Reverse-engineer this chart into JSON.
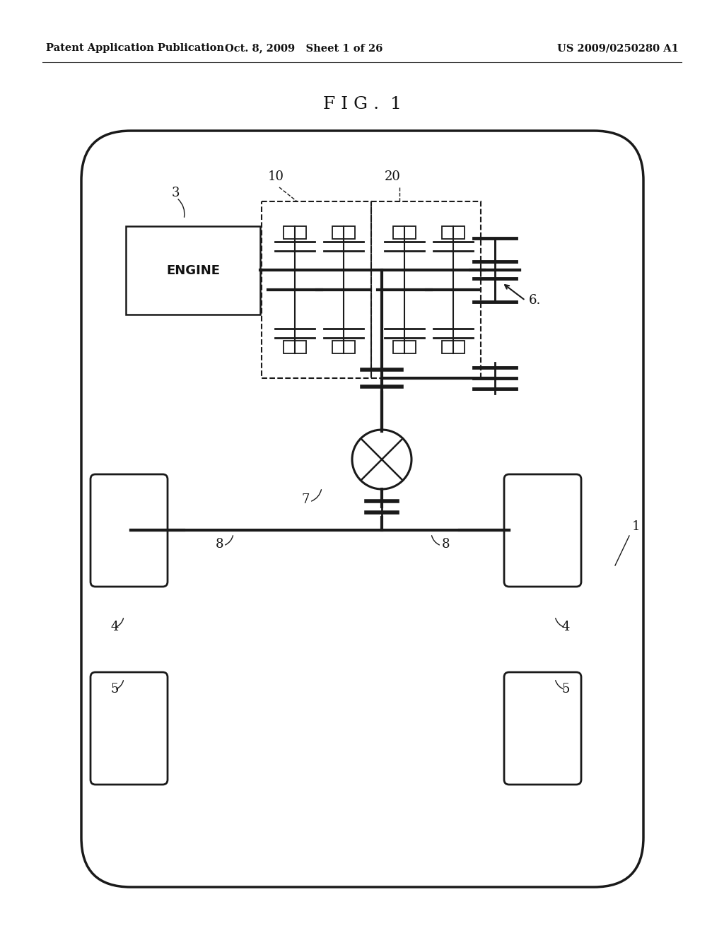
{
  "bg_color": "#ffffff",
  "header_left": "Patent Application Publication",
  "header_mid": "Oct. 8, 2009   Sheet 1 of 26",
  "header_right": "US 2009/0250280 A1",
  "fig_label": "F I G .  1",
  "color": "#1a1a1a"
}
